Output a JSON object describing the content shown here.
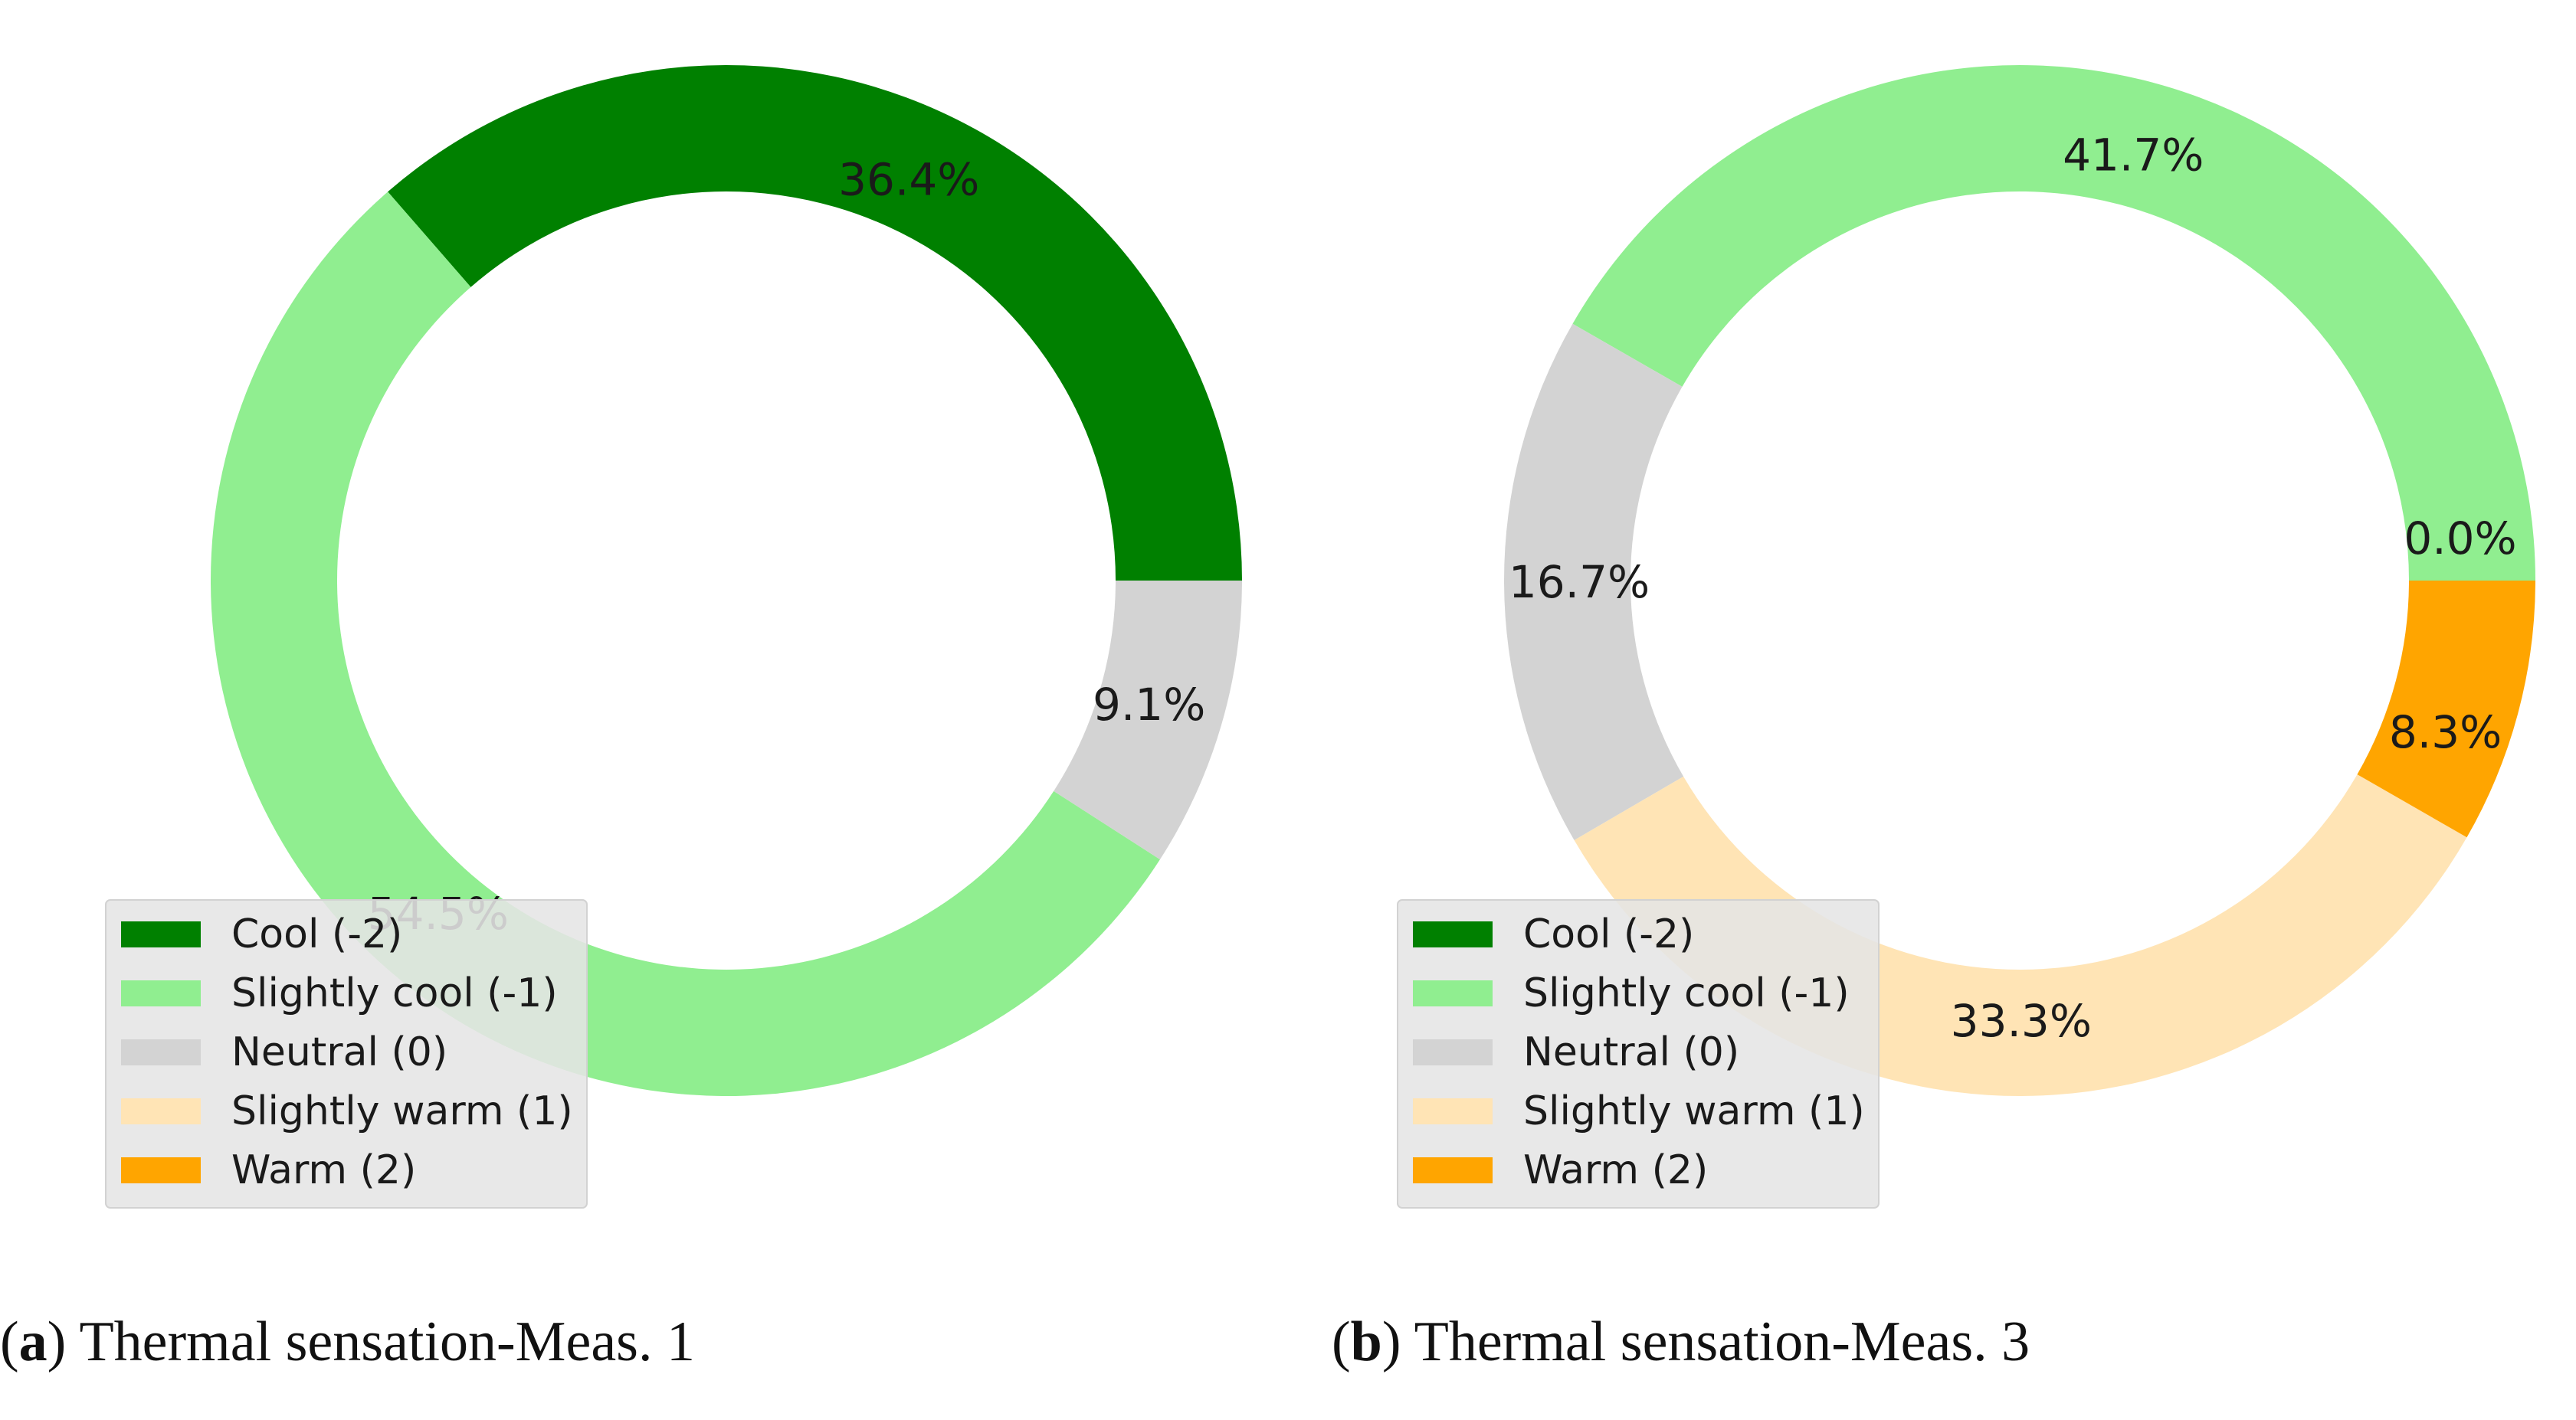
{
  "chart_data": [
    {
      "type": "pie",
      "subtype": "donut",
      "categories": [
        "Cool (-2)",
        "Slightly cool (-1)",
        "Neutral (0)",
        "Slightly warm (1)",
        "Warm (2)"
      ],
      "values": [
        36.4,
        54.5,
        9.1,
        0.0,
        0.0
      ],
      "slice_labels": [
        "36.4%",
        "54.5%",
        "9.1%",
        "",
        ""
      ],
      "colors": [
        "#008000",
        "#90ee90",
        "#d3d3d3",
        "#ffe4b5",
        "#ffa500"
      ],
      "legend_position": "lower-left",
      "caption_letter": "a",
      "caption_text": " Thermal sensation-Meas. 1"
    },
    {
      "type": "pie",
      "subtype": "donut",
      "categories": [
        "Cool (-2)",
        "Slightly cool (-1)",
        "Neutral (0)",
        "Slightly warm (1)",
        "Warm (2)"
      ],
      "values": [
        0.0,
        41.7,
        16.7,
        33.3,
        8.3
      ],
      "slice_labels": [
        "0.0%",
        "41.7%",
        "16.7%",
        "33.3%",
        "8.3%"
      ],
      "colors": [
        "#008000",
        "#90ee90",
        "#d3d3d3",
        "#ffe4b5",
        "#ffa500"
      ],
      "legend_position": "lower-left",
      "caption_letter": "b",
      "caption_text": " Thermal sensation-Meas. 3"
    }
  ]
}
